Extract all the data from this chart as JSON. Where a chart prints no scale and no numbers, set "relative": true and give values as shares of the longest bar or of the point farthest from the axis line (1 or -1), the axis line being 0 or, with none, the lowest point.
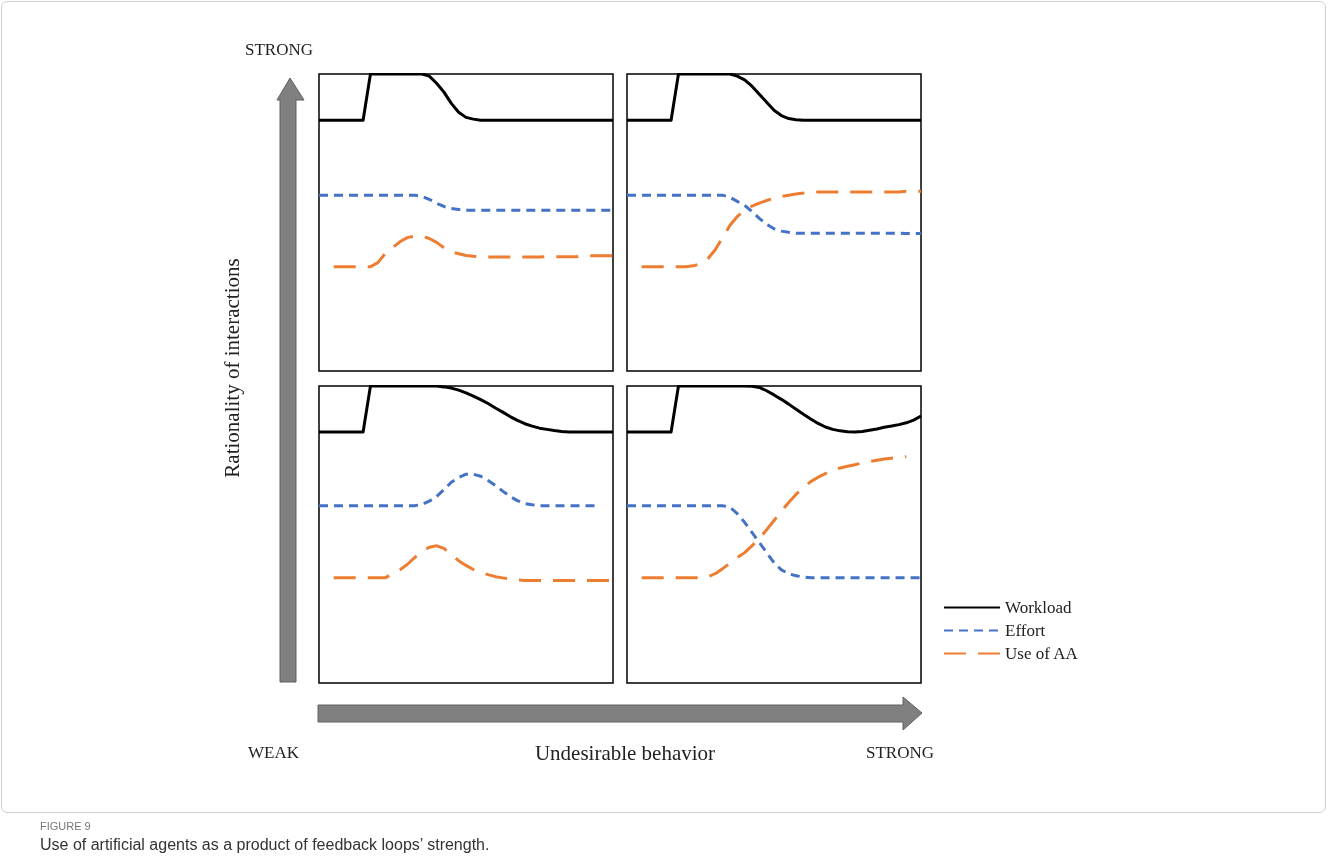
{
  "chart_data": [
    {
      "type": "line",
      "relative": true,
      "categories": [
        null,
        null,
        null,
        null,
        null,
        null,
        null,
        null,
        null,
        null,
        null,
        null,
        null,
        null,
        null,
        null,
        null,
        null,
        null,
        null,
        null,
        null,
        null,
        null,
        null,
        null,
        null,
        null,
        null,
        null,
        null,
        null,
        null,
        null,
        null,
        null,
        null,
        null,
        null,
        null,
        null
      ],
      "series": [
        {
          "color": "#000000",
          "line_style": "solid",
          "values": [
            0.844,
            0.844,
            0.844,
            0.844,
            0.844,
            0.844,
            0.844,
            1,
            1,
            1,
            1,
            1,
            1,
            1,
            1,
            0.993,
            0.969,
            0.939,
            0.901,
            0.871,
            0.854,
            0.848,
            0.844,
            0.844,
            0.844,
            0.844,
            0.844,
            0.844,
            0.844,
            0.844,
            0.844,
            0.844,
            0.844,
            0.844,
            0.844,
            0.844,
            0.844,
            0.844,
            0.844,
            0.844,
            0.844
          ]
        },
        {
          "color": "#4472c4",
          "line_style": "dashed",
          "values": [
            0.592,
            0.592,
            0.592,
            0.592,
            0.592,
            0.592,
            0.592,
            0.592,
            0.592,
            0.592,
            0.592,
            0.592,
            0.592,
            0.592,
            0.588,
            0.578,
            0.565,
            0.554,
            0.547,
            0.544,
            0.541,
            0.541,
            0.541,
            0.541,
            0.541,
            0.541,
            0.541,
            0.541,
            0.541,
            0.541,
            0.541,
            0.541,
            0.541,
            0.541,
            0.541,
            0.541,
            0.541,
            0.541,
            0.541,
            0.541,
            0.541
          ]
        },
        {
          "color": "#ed7d31",
          "line_style": "dashed",
          "values": [
            null,
            null,
            0.351,
            0.351,
            0.351,
            0.351,
            0.351,
            0.351,
            0.365,
            0.395,
            0.415,
            0.435,
            0.449,
            0.454,
            0.454,
            0.446,
            0.433,
            0.415,
            0.401,
            0.395,
            0.389,
            0.386,
            0.384,
            0.384,
            0.384,
            0.384,
            0.384,
            0.384,
            0.384,
            0.384,
            0.384,
            0.385,
            0.385,
            0.385,
            0.385,
            0.385,
            0.388,
            0.388,
            0.388,
            0.388,
            0.388
          ]
        }
      ]
    },
    {
      "type": "line",
      "relative": true,
      "categories": [
        null,
        null,
        null,
        null,
        null,
        null,
        null,
        null,
        null,
        null,
        null,
        null,
        null,
        null,
        null,
        null,
        null,
        null,
        null,
        null,
        null,
        null,
        null,
        null,
        null,
        null,
        null,
        null,
        null,
        null,
        null,
        null,
        null,
        null,
        null,
        null,
        null,
        null,
        null,
        null,
        null
      ],
      "series": [
        {
          "color": "#000000",
          "line_style": "solid",
          "values": [
            0.844,
            0.844,
            0.844,
            0.844,
            0.844,
            0.844,
            0.844,
            1,
            1,
            1,
            1,
            1,
            1,
            1,
            1,
            0.993,
            0.98,
            0.959,
            0.932,
            0.905,
            0.878,
            0.86,
            0.85,
            0.846,
            0.844,
            0.844,
            0.844,
            0.844,
            0.844,
            0.844,
            0.844,
            0.844,
            0.844,
            0.844,
            0.844,
            0.844,
            0.844,
            0.844,
            0.844,
            0.844,
            0.844
          ]
        },
        {
          "color": "#4472c4",
          "line_style": "dashed",
          "values": [
            0.592,
            0.592,
            0.592,
            0.592,
            0.592,
            0.592,
            0.592,
            0.592,
            0.592,
            0.592,
            0.592,
            0.592,
            0.592,
            0.592,
            0.585,
            0.571,
            0.558,
            0.537,
            0.514,
            0.494,
            0.479,
            0.471,
            0.467,
            0.464,
            0.464,
            0.464,
            0.464,
            0.464,
            0.464,
            0.464,
            0.464,
            0.464,
            0.464,
            0.464,
            0.464,
            0.464,
            0.464,
            0.464,
            0.463,
            0.463,
            0.463
          ]
        },
        {
          "color": "#ed7d31",
          "line_style": "dashed",
          "values": [
            null,
            null,
            0.351,
            0.351,
            0.351,
            0.351,
            0.351,
            0.351,
            0.351,
            0.354,
            0.361,
            0.378,
            0.408,
            0.449,
            0.49,
            0.52,
            0.541,
            0.555,
            0.565,
            0.574,
            0.582,
            0.588,
            0.592,
            0.596,
            0.599,
            0.603,
            0.603,
            0.603,
            0.603,
            0.603,
            0.603,
            0.603,
            0.603,
            0.603,
            0.603,
            0.603,
            0.603,
            0.603,
            0.605,
            0.605,
            0.605
          ]
        }
      ]
    },
    {
      "type": "line",
      "relative": true,
      "categories": [
        null,
        null,
        null,
        null,
        null,
        null,
        null,
        null,
        null,
        null,
        null,
        null,
        null,
        null,
        null,
        null,
        null,
        null,
        null,
        null,
        null,
        null,
        null,
        null,
        null,
        null,
        null,
        null,
        null,
        null,
        null,
        null,
        null,
        null,
        null,
        null,
        null,
        null,
        null,
        null,
        null
      ],
      "series": [
        {
          "color": "#000000",
          "line_style": "solid",
          "values": [
            0.845,
            0.845,
            0.845,
            0.845,
            0.845,
            0.845,
            0.845,
            1,
            1,
            1,
            1,
            1,
            1,
            1,
            1,
            1,
            1,
            0.997,
            0.993,
            0.986,
            0.977,
            0.966,
            0.954,
            0.941,
            0.926,
            0.912,
            0.897,
            0.884,
            0.873,
            0.865,
            0.858,
            0.854,
            0.85,
            0.847,
            0.845,
            0.845,
            0.845,
            0.845,
            0.845,
            0.845,
            0.845
          ]
        },
        {
          "color": "#4472c4",
          "line_style": "dashed",
          "values": [
            0.597,
            0.597,
            0.597,
            0.597,
            0.597,
            0.597,
            0.597,
            0.597,
            0.597,
            0.597,
            0.597,
            0.597,
            0.597,
            0.597,
            0.601,
            0.612,
            0.628,
            0.651,
            0.676,
            0.692,
            0.703,
            0.703,
            0.696,
            0.682,
            0.665,
            0.646,
            0.628,
            0.614,
            0.604,
            0.6,
            0.597,
            0.597,
            0.597,
            0.597,
            0.597,
            0.597,
            0.597,
            0.597,
            0.597,
            null,
            null
          ]
        },
        {
          "color": "#ed7d31",
          "line_style": "dashed",
          "values": [
            null,
            null,
            0.354,
            0.354,
            0.354,
            0.354,
            0.354,
            0.354,
            0.354,
            0.354,
            0.368,
            0.381,
            0.399,
            0.422,
            0.442,
            0.457,
            0.462,
            0.453,
            0.432,
            0.412,
            0.396,
            0.382,
            0.373,
            0.365,
            0.358,
            0.354,
            0.35,
            0.347,
            0.345,
            0.345,
            0.345,
            0.345,
            0.345,
            0.345,
            0.345,
            0.345,
            0.345,
            0.345,
            0.345,
            0.345,
            0.345
          ]
        }
      ]
    },
    {
      "type": "line",
      "relative": true,
      "legend": "bottom right",
      "categories": [
        null,
        null,
        null,
        null,
        null,
        null,
        null,
        null,
        null,
        null,
        null,
        null,
        null,
        null,
        null,
        null,
        null,
        null,
        null,
        null,
        null,
        null,
        null,
        null,
        null,
        null,
        null,
        null,
        null,
        null,
        null,
        null,
        null,
        null,
        null,
        null,
        null,
        null,
        null,
        null,
        null
      ],
      "series": [
        {
          "name": "Workload",
          "color": "#000000",
          "line_style": "solid",
          "values": [
            0.845,
            0.845,
            0.845,
            0.845,
            0.845,
            0.845,
            0.845,
            1,
            1,
            1,
            1,
            1,
            1,
            1,
            1,
            1,
            1,
            0.999,
            0.995,
            0.984,
            0.97,
            0.955,
            0.939,
            0.922,
            0.905,
            0.889,
            0.874,
            0.862,
            0.854,
            0.849,
            0.846,
            0.845,
            0.847,
            0.851,
            0.855,
            0.861,
            0.865,
            0.87,
            0.876,
            0.885,
            0.899
          ]
        },
        {
          "name": "Effort",
          "color": "#4472c4",
          "line_style": "dashed",
          "values": [
            0.597,
            0.597,
            0.597,
            0.597,
            0.597,
            0.597,
            0.597,
            0.597,
            0.597,
            0.597,
            0.597,
            0.597,
            0.597,
            0.597,
            0.592,
            0.57,
            0.541,
            0.507,
            0.473,
            0.439,
            0.405,
            0.381,
            0.368,
            0.361,
            0.357,
            0.354,
            0.354,
            0.354,
            0.354,
            0.354,
            0.354,
            0.354,
            0.354,
            0.354,
            0.354,
            0.354,
            0.354,
            0.354,
            0.354,
            0.354,
            0.354
          ]
        },
        {
          "name": "Use of AA",
          "color": "#ed7d31",
          "line_style": "dashed",
          "values": [
            null,
            null,
            0.354,
            0.354,
            0.354,
            0.354,
            0.354,
            0.354,
            0.354,
            0.354,
            0.354,
            0.358,
            0.368,
            0.385,
            0.403,
            0.422,
            0.439,
            0.462,
            0.486,
            0.516,
            0.547,
            0.578,
            0.608,
            0.635,
            0.659,
            0.678,
            0.693,
            0.705,
            0.716,
            0.724,
            0.73,
            0.735,
            0.741,
            0.746,
            0.75,
            0.754,
            0.757,
            0.759,
            0.762,
            null,
            null
          ]
        }
      ]
    },
    {
      "type": "other",
      "annotations": [
        "STRONG",
        "Rationality of interactions",
        "WEAK",
        "Undesirable behavior",
        "STRONG",
        "FIGURE 9",
        "Use of artificial agents as a product of feedback loops’ strength."
      ]
    }
  ]
}
